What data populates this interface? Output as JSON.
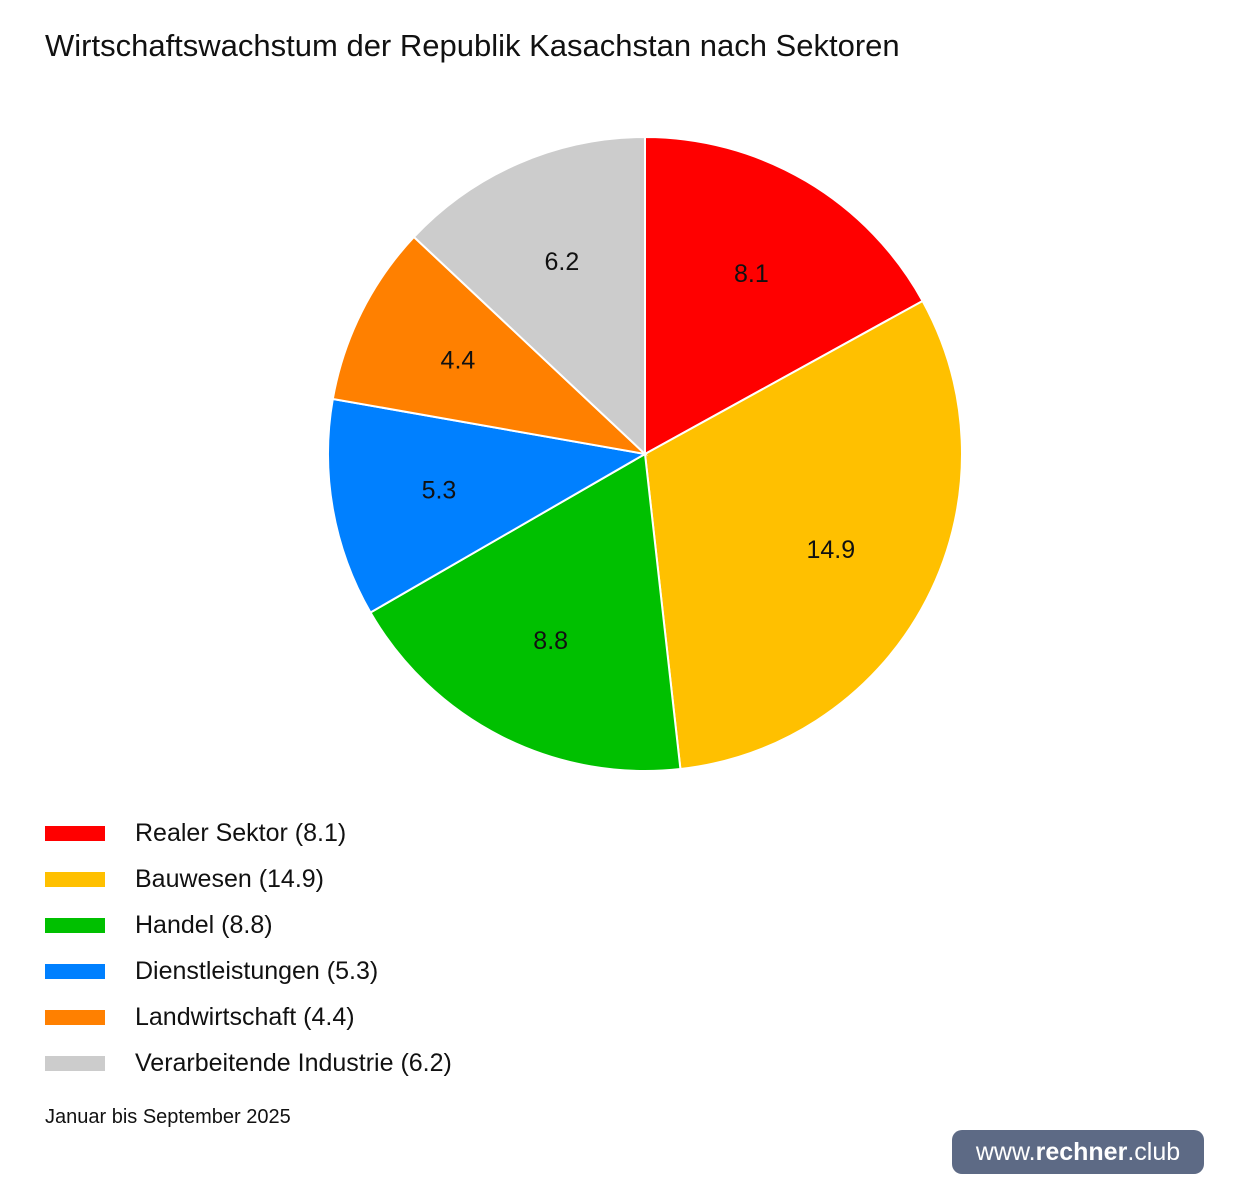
{
  "title": "Wirtschaftswachstum der Republik Kasachstan nach Sektoren",
  "note": "Januar bis September 2025",
  "brand": {
    "prefix": "www.",
    "bold": "rechner",
    "suffix": ".club"
  },
  "chart_data": {
    "type": "pie",
    "title": "Wirtschaftswachstum der Republik Kasachstan nach Sektoren",
    "categories": [
      "Realer Sektor",
      "Bauwesen",
      "Handel",
      "Dienstleistungen",
      "Landwirtschaft",
      "Verarbeitende Industrie"
    ],
    "values": [
      8.1,
      14.9,
      8.8,
      5.3,
      4.4,
      6.2
    ],
    "data_labels": [
      "8.1",
      "14.9",
      "8.8",
      "5.3",
      "4.4",
      "6.2"
    ],
    "colors": [
      "#ff0000",
      "#ffc000",
      "#00c000",
      "#0080ff",
      "#ff8000",
      "#cccccc"
    ],
    "start_angle": "12 o'clock",
    "direction": "clockwise",
    "legend_placement": "bottom-left",
    "legend_labels": [
      "Realer Sektor (8.1)",
      "Bauwesen (14.9)",
      "Handel (8.8)",
      "Dienstleistungen (5.3)",
      "Landwirtschaft (4.4)",
      "Verarbeitende Industrie (6.2)"
    ]
  }
}
